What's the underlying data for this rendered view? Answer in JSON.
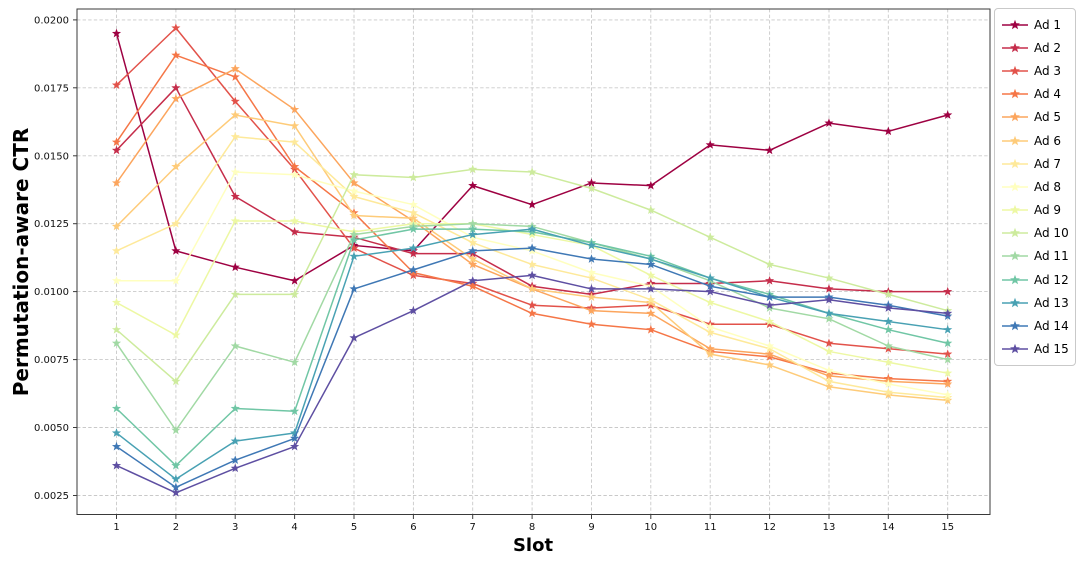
{
  "figure": {
    "background": "#ffffff"
  },
  "chart_data": {
    "type": "line",
    "title": "",
    "xlabel": "Slot",
    "ylabel": "Permutation-aware CTR",
    "marker": "star",
    "grid": true,
    "legend_position": "outside-right",
    "x": [
      1,
      2,
      3,
      4,
      5,
      6,
      7,
      8,
      9,
      10,
      11,
      12,
      13,
      14,
      15
    ],
    "x_tick_labels": [
      "1",
      "2",
      "3",
      "4",
      "5",
      "6",
      "7",
      "8",
      "9",
      "10",
      "11",
      "12",
      "13",
      "14",
      "15"
    ],
    "y_tick_values": [
      0.0025,
      0.005,
      0.0075,
      0.01,
      0.0125,
      0.015,
      0.0175,
      0.02
    ],
    "y_tick_labels": [
      "0.0025",
      "0.0050",
      "0.0075",
      "0.0100",
      "0.0125",
      "0.0150",
      "0.0175",
      "0.0200"
    ],
    "ylim": [
      0.0018,
      0.0204
    ],
    "series": [
      {
        "name": "Ad 1",
        "color": "#9e0142",
        "values": [
          0.0195,
          0.0115,
          0.0109,
          0.0104,
          0.0117,
          0.0115,
          0.0139,
          0.0132,
          0.014,
          0.0139,
          0.0154,
          0.0152,
          0.0162,
          0.0159,
          0.0165
        ]
      },
      {
        "name": "Ad 2",
        "color": "#c52d4b",
        "values": [
          0.0152,
          0.0175,
          0.0135,
          0.0122,
          0.012,
          0.0114,
          0.0114,
          0.0102,
          0.0099,
          0.0103,
          0.0103,
          0.0104,
          0.0101,
          0.01,
          0.01
        ]
      },
      {
        "name": "Ad 3",
        "color": "#e2524a",
        "values": [
          0.0176,
          0.0197,
          0.017,
          0.0145,
          0.0116,
          0.0106,
          0.0103,
          0.0095,
          0.0094,
          0.0095,
          0.0088,
          0.0088,
          0.0081,
          0.0079,
          0.0077
        ]
      },
      {
        "name": "Ad 4",
        "color": "#f57647",
        "values": [
          0.0155,
          0.0187,
          0.0179,
          0.0146,
          0.0129,
          0.0107,
          0.0102,
          0.0092,
          0.0088,
          0.0086,
          0.0078,
          0.0076,
          0.007,
          0.0068,
          0.0067
        ]
      },
      {
        "name": "Ad 5",
        "color": "#fca55d",
        "values": [
          0.014,
          0.0171,
          0.0182,
          0.0167,
          0.014,
          0.0126,
          0.011,
          0.0101,
          0.0093,
          0.0092,
          0.0079,
          0.0077,
          0.0069,
          0.0067,
          0.0066
        ]
      },
      {
        "name": "Ad 6",
        "color": "#fecb79",
        "values": [
          0.0124,
          0.0146,
          0.0165,
          0.0161,
          0.0128,
          0.0127,
          0.0112,
          0.0101,
          0.0098,
          0.0096,
          0.0077,
          0.0073,
          0.0065,
          0.0062,
          0.006
        ]
      },
      {
        "name": "Ad 7",
        "color": "#fee99a",
        "values": [
          0.0115,
          0.0125,
          0.0157,
          0.0155,
          0.0135,
          0.0129,
          0.0118,
          0.011,
          0.0105,
          0.0097,
          0.0085,
          0.0079,
          0.0067,
          0.0063,
          0.0061
        ]
      },
      {
        "name": "Ad 8",
        "color": "#ffffbf",
        "values": [
          0.0104,
          0.0104,
          0.0144,
          0.0143,
          0.0137,
          0.0132,
          0.012,
          0.0115,
          0.0107,
          0.0102,
          0.0087,
          0.008,
          0.0071,
          0.0066,
          0.0062
        ]
      },
      {
        "name": "Ad 9",
        "color": "#edf8a3",
        "values": [
          0.0096,
          0.0084,
          0.0126,
          0.0126,
          0.0122,
          0.0125,
          0.0125,
          0.0121,
          0.0117,
          0.0106,
          0.0096,
          0.0089,
          0.0078,
          0.0074,
          0.007
        ]
      },
      {
        "name": "Ad 10",
        "color": "#cdeb9d",
        "values": [
          0.0086,
          0.0067,
          0.0099,
          0.0099,
          0.0143,
          0.0142,
          0.0145,
          0.0144,
          0.0138,
          0.013,
          0.012,
          0.011,
          0.0105,
          0.0099,
          0.0093
        ]
      },
      {
        "name": "Ad 11",
        "color": "#a1d9a4",
        "values": [
          0.0081,
          0.0049,
          0.008,
          0.0074,
          0.0121,
          0.0124,
          0.0125,
          0.0124,
          0.0118,
          0.0112,
          0.0104,
          0.0094,
          0.009,
          0.008,
          0.0075
        ]
      },
      {
        "name": "Ad 12",
        "color": "#70c6a5",
        "values": [
          0.0057,
          0.0036,
          0.0057,
          0.0056,
          0.0119,
          0.0123,
          0.0123,
          0.0122,
          0.0118,
          0.0113,
          0.0105,
          0.0099,
          0.0092,
          0.0086,
          0.0081
        ]
      },
      {
        "name": "Ad 13",
        "color": "#48a1b3",
        "values": [
          0.0048,
          0.0031,
          0.0045,
          0.0048,
          0.0113,
          0.0116,
          0.0121,
          0.0123,
          0.0117,
          0.0112,
          0.0105,
          0.0098,
          0.0092,
          0.0089,
          0.0086
        ]
      },
      {
        "name": "Ad 14",
        "color": "#3f78b5",
        "values": [
          0.0043,
          0.0028,
          0.0038,
          0.0046,
          0.0101,
          0.0108,
          0.0115,
          0.0116,
          0.0112,
          0.011,
          0.0102,
          0.0098,
          0.0098,
          0.0095,
          0.0091
        ]
      },
      {
        "name": "Ad 15",
        "color": "#5e4fa2",
        "values": [
          0.0036,
          0.0026,
          0.0035,
          0.0043,
          0.0083,
          0.0093,
          0.0104,
          0.0106,
          0.0101,
          0.0101,
          0.01,
          0.0095,
          0.0097,
          0.0094,
          0.0092
        ]
      }
    ]
  }
}
